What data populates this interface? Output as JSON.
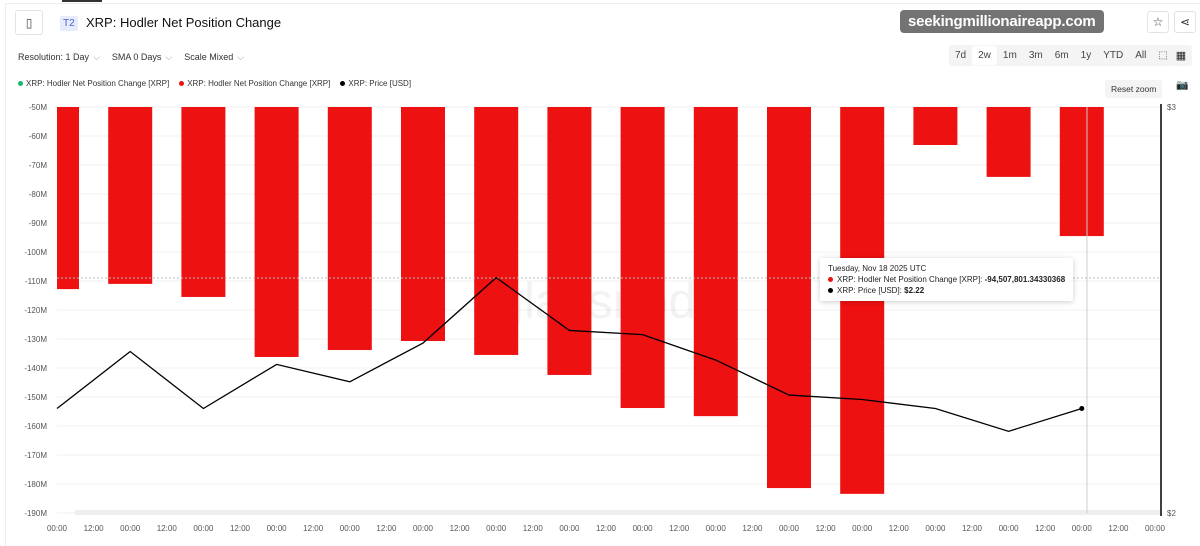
{
  "header": {
    "tag": "T2",
    "title": "XRP: Hodler Net Position Change"
  },
  "controls": {
    "resolution": "Resolution: 1 Day",
    "sma": "SMA 0 Days",
    "scale": "Scale Mixed"
  },
  "ranges": [
    "7d",
    "2w",
    "1m",
    "3m",
    "6m",
    "1y",
    "YTD",
    "All"
  ],
  "active_range": "2w",
  "reset_zoom": "Reset zoom",
  "legend": [
    {
      "label": "XRP: Hodler Net Position Change [XRP]",
      "color": "#16b86a"
    },
    {
      "label": "XRP: Hodler Net Position Change [XRP]",
      "color": "#ee1111"
    },
    {
      "label": "XRP: Price [USD]",
      "color": "#000000"
    }
  ],
  "tooltip": {
    "date": "Tuesday, Nov 18 2025 UTC",
    "series1_label": "XRP: Hodler Net Position Change [XRP]: ",
    "series1_value": "-94,507,801.34330368",
    "series2_label": "XRP: Price [USD]: ",
    "series2_value": "$2.22"
  },
  "watermark": "glassnode",
  "site_watermark": "seekingmillionaireapp.com",
  "chart_data": {
    "type": "bar+line",
    "x_tick_labels": [
      "00:00",
      "12:00",
      "00:00",
      "12:00",
      "00:00",
      "12:00",
      "00:00",
      "12:00",
      "00:00",
      "12:00",
      "00:00",
      "12:00",
      "00:00",
      "12:00",
      "00:00",
      "12:00",
      "00:00",
      "12:00",
      "00:00",
      "12:00",
      "00:00",
      "12:00",
      "00:00",
      "12:00",
      "00:00",
      "12:00",
      "00:00",
      "12:00",
      "00:00",
      "12:00",
      "00:00"
    ],
    "y_left": {
      "ticks": [
        "-50M",
        "-60M",
        "-70M",
        "-80M",
        "-90M",
        "-100M",
        "-110M",
        "-120M",
        "-130M",
        "-140M",
        "-150M",
        "-160M",
        "-170M",
        "-180M",
        "-190M"
      ],
      "range": [
        -190000000,
        -50000000
      ]
    },
    "y_right": {
      "ticks": [
        "$3",
        "$2"
      ],
      "range": [
        2,
        3
      ],
      "scale": "log"
    },
    "series": [
      {
        "name": "XRP: Hodler Net Position Change [XRP]",
        "type": "bar",
        "color": "#ee1111",
        "values": [
          -112800000.0,
          -111000000.0,
          -115500000.0,
          -136200000.0,
          -133800000.0,
          -130700000.0,
          -135500000.0,
          -142400000.0,
          -153800000.0,
          -156600000.0,
          -181400000.0,
          -183400000.0,
          -63100000.0,
          -74100000.0,
          -94507801.34
        ]
      },
      {
        "name": "XRP: Price [USD]",
        "type": "line",
        "color": "#000000",
        "values": [
          2.22,
          2.35,
          2.22,
          2.32,
          2.28,
          2.37,
          2.53,
          2.4,
          2.39,
          2.33,
          2.25,
          2.24,
          2.22,
          2.17,
          2.22
        ]
      }
    ]
  }
}
